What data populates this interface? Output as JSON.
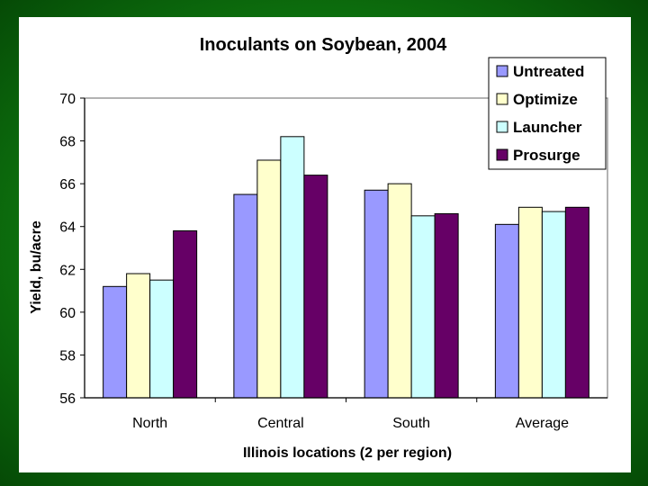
{
  "chart_data": {
    "type": "bar",
    "title": "Inoculants on Soybean, 2004",
    "xlabel": "Illinois locations (2 per region)",
    "ylabel": "Yield, bu/acre",
    "ylim": [
      56,
      70
    ],
    "yticks": [
      56,
      58,
      60,
      62,
      64,
      66,
      68,
      70
    ],
    "categories": [
      "North",
      "Central",
      "South",
      "Average"
    ],
    "series": [
      {
        "name": "Untreated",
        "color": "#9999ff",
        "values": [
          61.2,
          65.5,
          65.7,
          64.1
        ]
      },
      {
        "name": "Optimize",
        "color": "#ffffcc",
        "values": [
          61.8,
          67.1,
          66.0,
          64.9
        ]
      },
      {
        "name": "Launcher",
        "color": "#ccffff",
        "values": [
          61.5,
          68.2,
          64.5,
          64.7
        ]
      },
      {
        "name": "Prosurge",
        "color": "#660066",
        "values": [
          63.8,
          66.4,
          64.6,
          64.9
        ]
      }
    ],
    "grid": false,
    "legend_position": "top-right"
  },
  "colors": {
    "background": "#0f7a10",
    "panel": "#ffffff",
    "plot_area": "#ffffff",
    "bar_stroke": "#000000"
  }
}
